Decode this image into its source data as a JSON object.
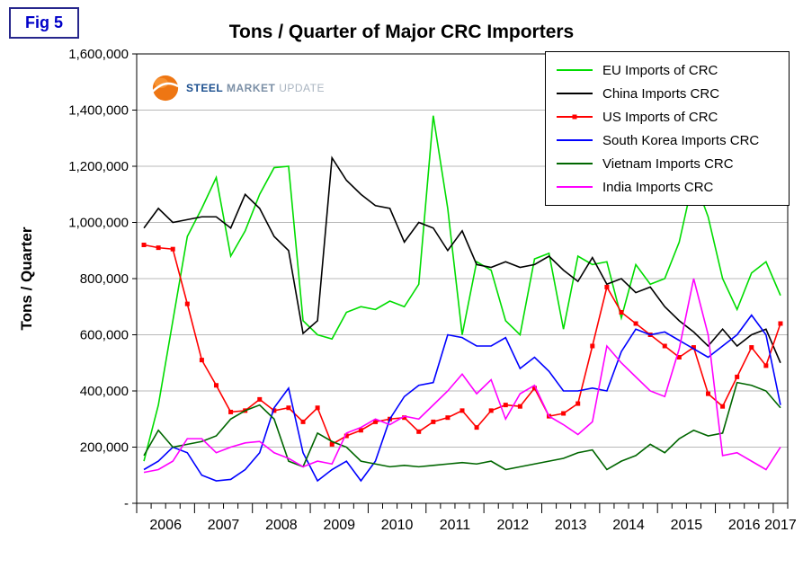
{
  "fig_label": "Fig 5",
  "title": "Tons / Quarter of Major CRC Importers",
  "y_axis_title": "Tons / Quarter",
  "logo": {
    "steel": "STEEL",
    "market": "MARKET",
    "update": "UPDATE"
  },
  "chart_data": {
    "type": "line",
    "title": "Tons / Quarter of Major CRC Importers",
    "xlabel": "",
    "ylabel": "Tons / Quarter",
    "ylim": [
      0,
      1600000
    ],
    "y_tick_step": 200000,
    "y_tick_labels": [
      "-",
      "200,000",
      "400,000",
      "600,000",
      "800,000",
      "1,000,000",
      "1,200,000",
      "1,400,000",
      "1,600,000"
    ],
    "x_years": [
      "2006",
      "2007",
      "2008",
      "2009",
      "2010",
      "2011",
      "2012",
      "2013",
      "2014",
      "2015",
      "2016",
      "2017"
    ],
    "quarters_per_year": 4,
    "grid": true,
    "grid_color": "#b8b8b8",
    "legend_position": "top-right",
    "series": [
      {
        "name": "EU Imports of CRC",
        "color": "#00dc00",
        "marker": "none",
        "values": [
          150000,
          350000,
          650000,
          950000,
          1050000,
          1160000,
          880000,
          970000,
          1100000,
          1195000,
          1200000,
          650000,
          600000,
          585000,
          680000,
          700000,
          690000,
          720000,
          700000,
          780000,
          1380000,
          1050000,
          600000,
          860000,
          830000,
          650000,
          600000,
          870000,
          890000,
          620000,
          880000,
          850000,
          860000,
          660000,
          850000,
          780000,
          800000,
          930000,
          1160000,
          1020000,
          800000,
          690000,
          820000,
          860000,
          740000
        ]
      },
      {
        "name": "China Imports CRC",
        "color": "#000000",
        "marker": "none",
        "values": [
          980000,
          1050000,
          1000000,
          1010000,
          1020000,
          1020000,
          980000,
          1100000,
          1050000,
          950000,
          900000,
          605000,
          650000,
          1230000,
          1150000,
          1100000,
          1060000,
          1050000,
          930000,
          1000000,
          980000,
          900000,
          970000,
          850000,
          840000,
          860000,
          840000,
          850000,
          880000,
          830000,
          790000,
          875000,
          780000,
          800000,
          750000,
          770000,
          700000,
          650000,
          610000,
          560000,
          620000,
          560000,
          600000,
          620000,
          500000
        ]
      },
      {
        "name": "US Imports of CRC",
        "color": "#ff0000",
        "marker": "square",
        "values": [
          920000,
          910000,
          905000,
          710000,
          510000,
          420000,
          325000,
          330000,
          370000,
          330000,
          340000,
          290000,
          340000,
          210000,
          240000,
          260000,
          290000,
          300000,
          305000,
          255000,
          290000,
          305000,
          330000,
          270000,
          330000,
          350000,
          345000,
          410000,
          310000,
          320000,
          355000,
          560000,
          770000,
          680000,
          640000,
          600000,
          560000,
          520000,
          555000,
          390000,
          345000,
          450000,
          555000,
          490000,
          640000
        ]
      },
      {
        "name": "South Korea Imports CRC",
        "color": "#0000ff",
        "marker": "none",
        "values": [
          120000,
          150000,
          200000,
          180000,
          100000,
          80000,
          85000,
          120000,
          180000,
          340000,
          410000,
          180000,
          80000,
          120000,
          150000,
          80000,
          150000,
          300000,
          380000,
          420000,
          430000,
          600000,
          590000,
          560000,
          560000,
          590000,
          480000,
          520000,
          470000,
          400000,
          400000,
          410000,
          400000,
          540000,
          620000,
          600000,
          610000,
          580000,
          550000,
          520000,
          560000,
          600000,
          670000,
          600000,
          350000
        ]
      },
      {
        "name": "Vietnam Imports CRC",
        "color": "#006600",
        "marker": "none",
        "values": [
          170000,
          260000,
          200000,
          210000,
          220000,
          240000,
          300000,
          330000,
          350000,
          300000,
          150000,
          130000,
          250000,
          220000,
          200000,
          150000,
          140000,
          130000,
          135000,
          130000,
          135000,
          140000,
          145000,
          140000,
          150000,
          120000,
          130000,
          140000,
          150000,
          160000,
          180000,
          190000,
          120000,
          150000,
          170000,
          210000,
          180000,
          230000,
          260000,
          240000,
          250000,
          430000,
          420000,
          400000,
          340000
        ]
      },
      {
        "name": "India Imports CRC",
        "color": "#ff00ff",
        "marker": "none",
        "values": [
          110000,
          120000,
          150000,
          230000,
          230000,
          180000,
          200000,
          215000,
          220000,
          180000,
          160000,
          130000,
          150000,
          140000,
          250000,
          270000,
          300000,
          280000,
          310000,
          300000,
          350000,
          400000,
          460000,
          390000,
          440000,
          300000,
          390000,
          420000,
          310000,
          280000,
          245000,
          290000,
          560000,
          500000,
          450000,
          400000,
          380000,
          550000,
          800000,
          600000,
          170000,
          180000,
          150000,
          120000,
          200000
        ]
      }
    ]
  }
}
